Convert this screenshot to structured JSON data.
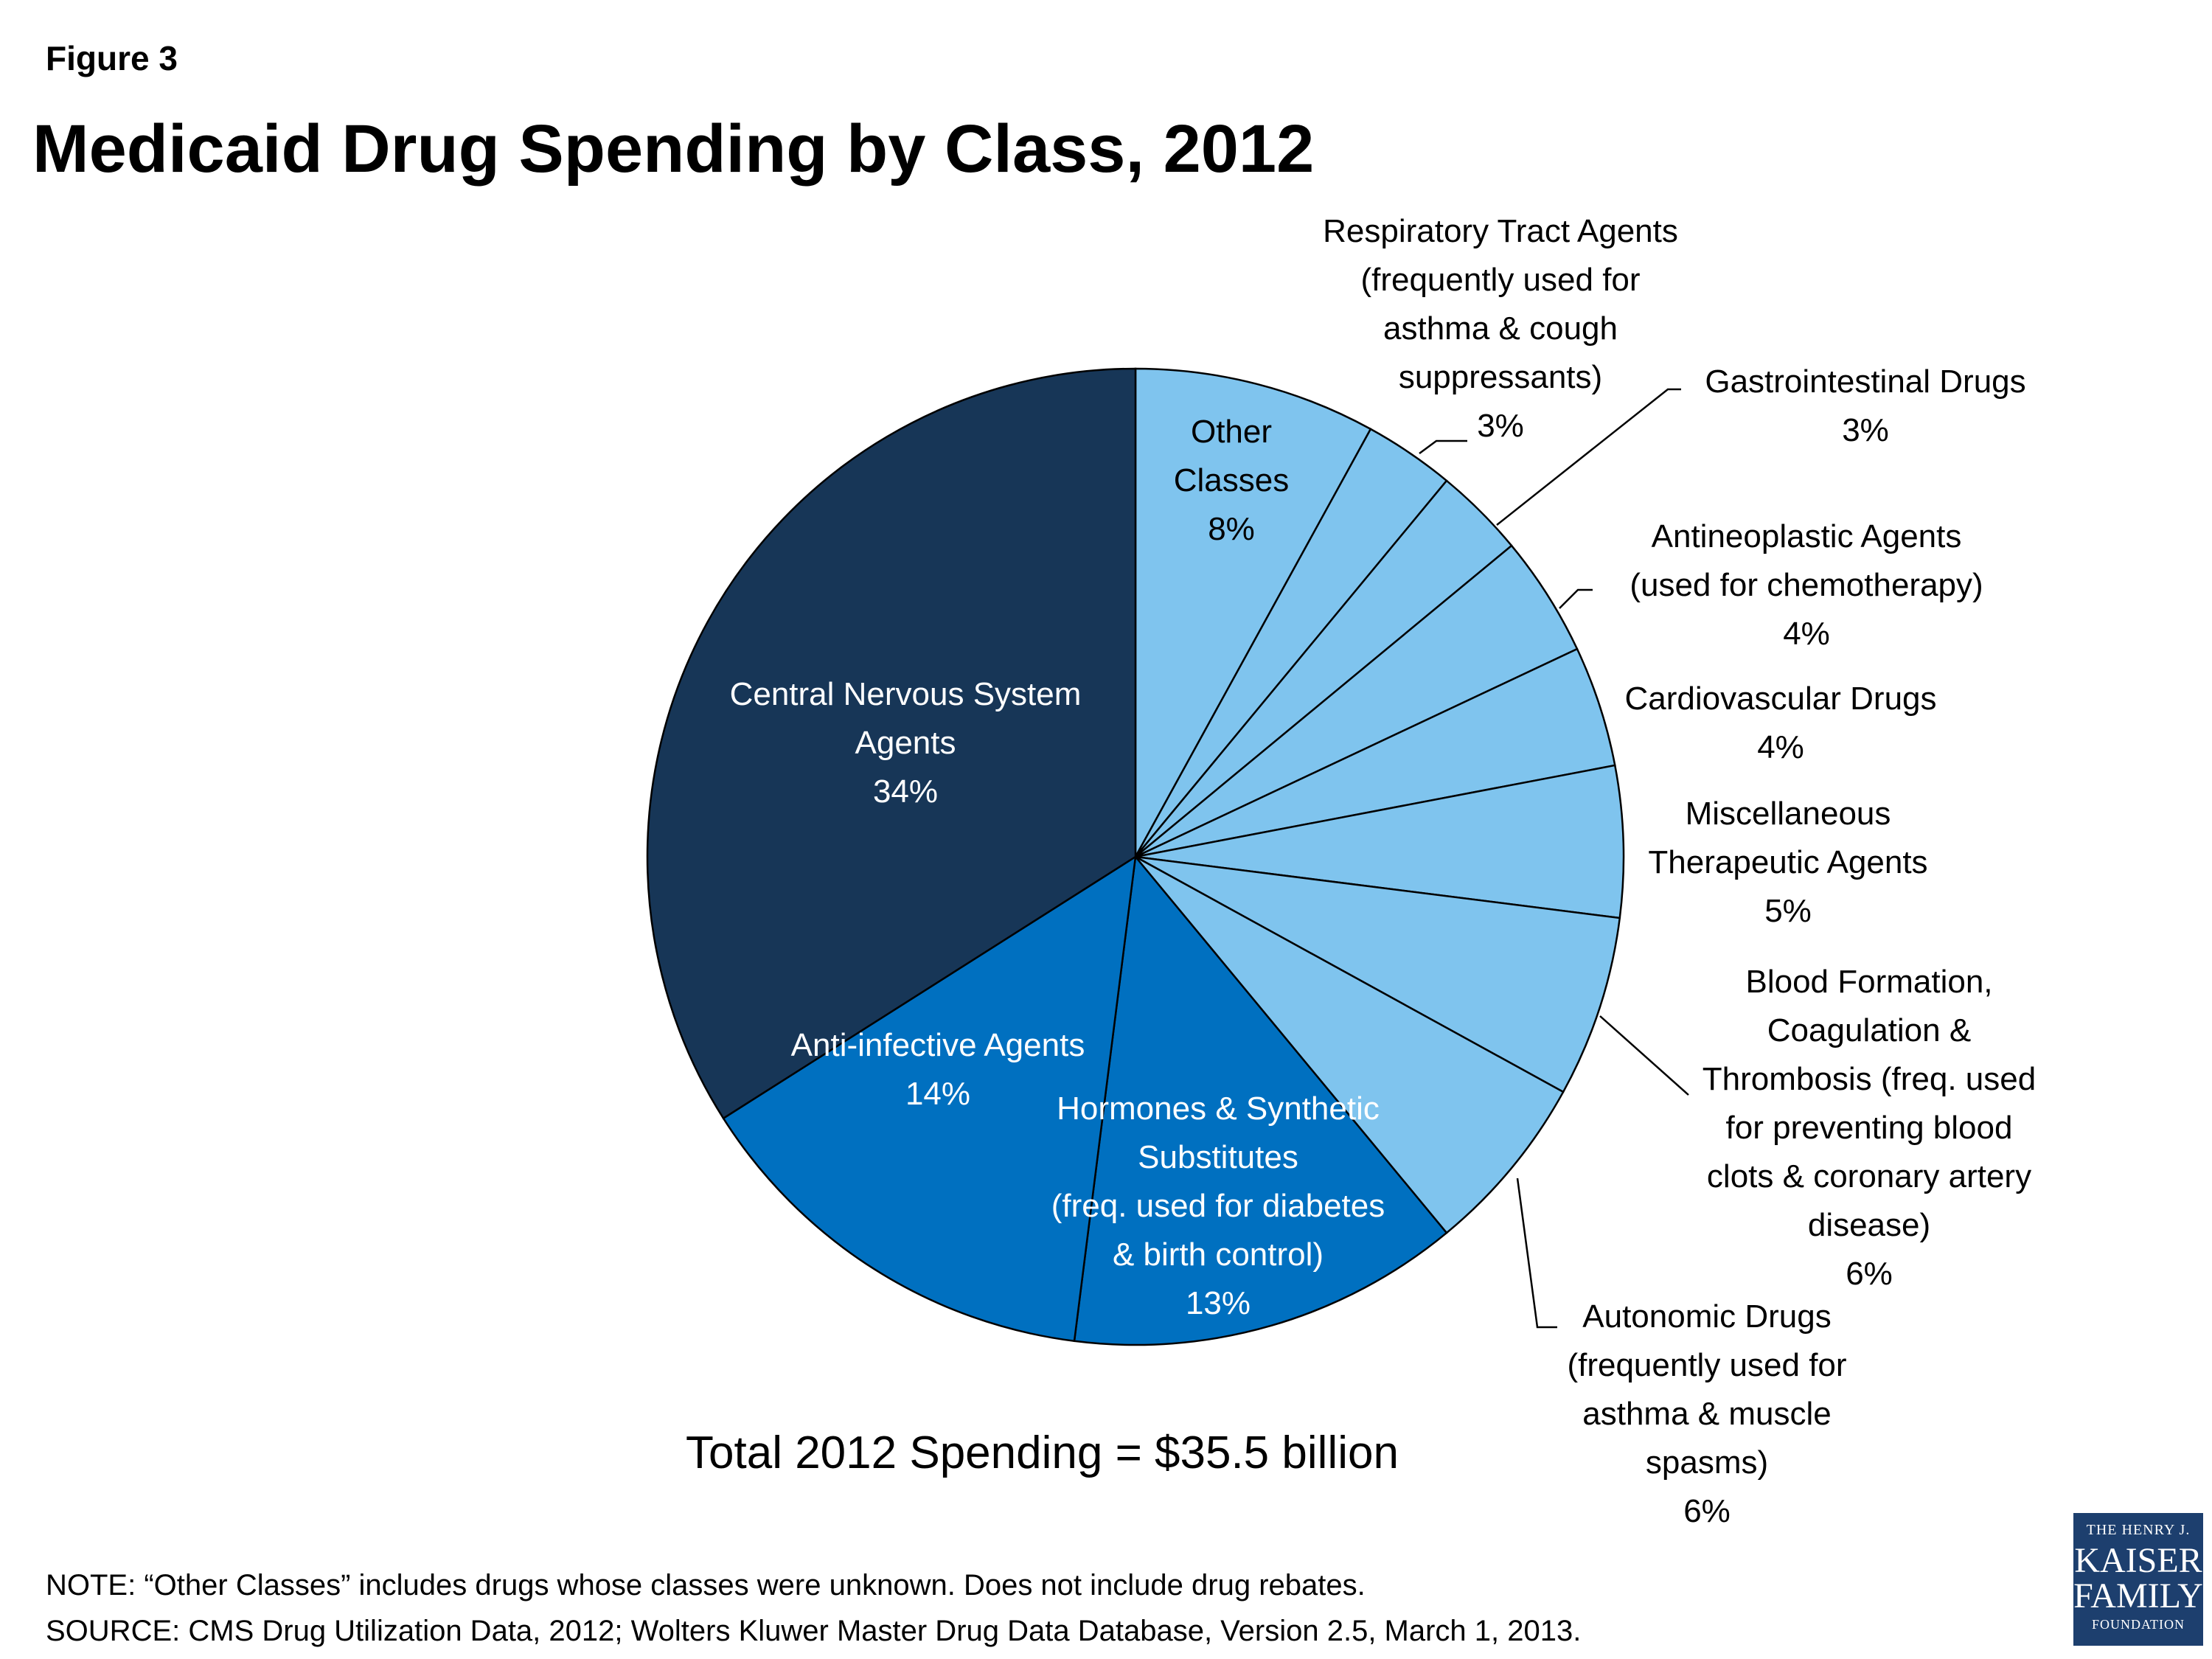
{
  "figure_label": "Figure 3",
  "chart_data": {
    "type": "pie",
    "title": "Medicaid Drug Spending by Class, 2012",
    "unit": "%",
    "slices": [
      {
        "label": [
          "Other",
          "Classes",
          "8%"
        ],
        "value": 8,
        "color": "#7fc4ee",
        "label_inside": true
      },
      {
        "label": [
          "Respiratory Tract Agents",
          "(frequently used for",
          "asthma & cough",
          "suppressants)",
          "3%"
        ],
        "value": 3,
        "color": "#7fc4ee",
        "label_inside": false
      },
      {
        "label": [
          "Gastrointestinal Drugs",
          "3%"
        ],
        "value": 3,
        "color": "#7fc4ee",
        "label_inside": false
      },
      {
        "label": [
          "Antineoplastic Agents",
          "(used for chemotherapy)",
          "4%"
        ],
        "value": 4,
        "color": "#7fc4ee",
        "label_inside": false
      },
      {
        "label": [
          "Cardiovascular Drugs",
          "4%"
        ],
        "value": 4,
        "color": "#7fc4ee",
        "label_inside": false
      },
      {
        "label": [
          "Miscellaneous",
          "Therapeutic Agents",
          "5%"
        ],
        "value": 5,
        "color": "#7fc4ee",
        "label_inside": false
      },
      {
        "label": [
          "Blood Formation,",
          "Coagulation &",
          "Thrombosis (freq. used",
          "for preventing blood",
          "clots & coronary artery",
          "disease)",
          "6%"
        ],
        "value": 6,
        "color": "#7fc4ee",
        "label_inside": false
      },
      {
        "label": [
          "Autonomic Drugs",
          "(frequently used for",
          "asthma & muscle",
          "spasms)",
          "6%"
        ],
        "value": 6,
        "color": "#7fc4ee",
        "label_inside": false
      },
      {
        "label": [
          "Hormones & Synthetic",
          "Substitutes",
          "(freq. used for diabetes",
          "& birth control)",
          "13%"
        ],
        "value": 13,
        "color": "#0070c0",
        "label_inside": true
      },
      {
        "label": [
          "Anti-infective Agents",
          "14%"
        ],
        "value": 14,
        "color": "#0070c0",
        "label_inside": true
      },
      {
        "label": [
          "Central Nervous System",
          "Agents",
          "34%"
        ],
        "value": 34,
        "color": "#173657",
        "label_inside": true
      }
    ]
  },
  "total_text": "Total 2012 Spending = $35.5 billion",
  "note": "NOTE: “Other Classes” includes drugs whose classes were unknown. Does not include drug rebates.",
  "source": "SOURCE: CMS Drug Utilization Data, 2012; Wolters Kluwer Master Drug Data Database, Version 2.5, March 1, 2013.",
  "logo": {
    "line1": "THE HENRY J.",
    "line2": "KAISER",
    "line3": "FAMILY",
    "line4": "FOUNDATION"
  }
}
